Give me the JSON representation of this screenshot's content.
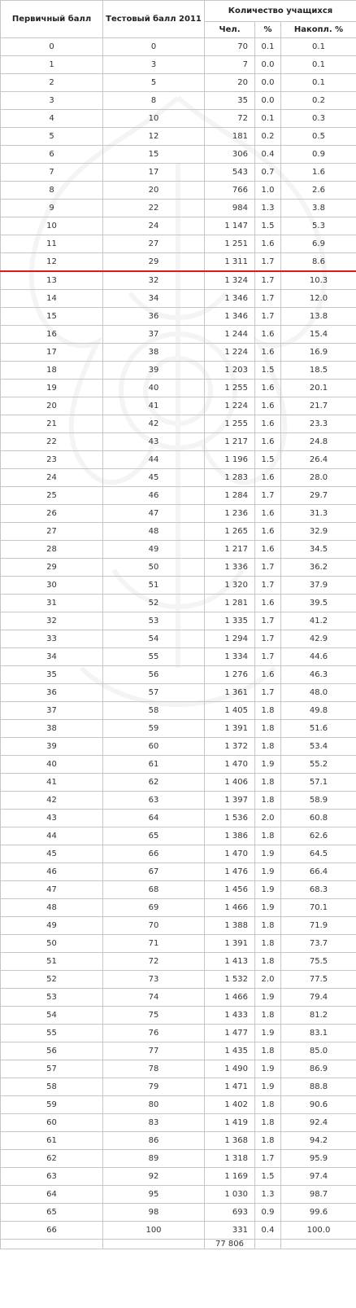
{
  "table": {
    "headers": {
      "primary": "Первичный балл",
      "test": "Тестовый балл 2011",
      "count_group": "Количество учащихся",
      "people": "Чел.",
      "percent": "%",
      "cumulative": "Накопл. %"
    },
    "threshold_after_primary": 12,
    "threshold_color": "#e0191b",
    "rows": [
      [
        "0",
        "0",
        "70",
        "0.1",
        "0.1"
      ],
      [
        "1",
        "3",
        "7",
        "0.0",
        "0.1"
      ],
      [
        "2",
        "5",
        "20",
        "0.0",
        "0.1"
      ],
      [
        "3",
        "8",
        "35",
        "0.0",
        "0.2"
      ],
      [
        "4",
        "10",
        "72",
        "0.1",
        "0.3"
      ],
      [
        "5",
        "12",
        "181",
        "0.2",
        "0.5"
      ],
      [
        "6",
        "15",
        "306",
        "0.4",
        "0.9"
      ],
      [
        "7",
        "17",
        "543",
        "0.7",
        "1.6"
      ],
      [
        "8",
        "20",
        "766",
        "1.0",
        "2.6"
      ],
      [
        "9",
        "22",
        "984",
        "1.3",
        "3.8"
      ],
      [
        "10",
        "24",
        "1 147",
        "1.5",
        "5.3"
      ],
      [
        "11",
        "27",
        "1 251",
        "1.6",
        "6.9"
      ],
      [
        "12",
        "29",
        "1 311",
        "1.7",
        "8.6"
      ],
      [
        "13",
        "32",
        "1 324",
        "1.7",
        "10.3"
      ],
      [
        "14",
        "34",
        "1 346",
        "1.7",
        "12.0"
      ],
      [
        "15",
        "36",
        "1 346",
        "1.7",
        "13.8"
      ],
      [
        "16",
        "37",
        "1 244",
        "1.6",
        "15.4"
      ],
      [
        "17",
        "38",
        "1 224",
        "1.6",
        "16.9"
      ],
      [
        "18",
        "39",
        "1 203",
        "1.5",
        "18.5"
      ],
      [
        "19",
        "40",
        "1 255",
        "1.6",
        "20.1"
      ],
      [
        "20",
        "41",
        "1 224",
        "1.6",
        "21.7"
      ],
      [
        "21",
        "42",
        "1 255",
        "1.6",
        "23.3"
      ],
      [
        "22",
        "43",
        "1 217",
        "1.6",
        "24.8"
      ],
      [
        "23",
        "44",
        "1 196",
        "1.5",
        "26.4"
      ],
      [
        "24",
        "45",
        "1 283",
        "1.6",
        "28.0"
      ],
      [
        "25",
        "46",
        "1 284",
        "1.7",
        "29.7"
      ],
      [
        "26",
        "47",
        "1 236",
        "1.6",
        "31.3"
      ],
      [
        "27",
        "48",
        "1 265",
        "1.6",
        "32.9"
      ],
      [
        "28",
        "49",
        "1 217",
        "1.6",
        "34.5"
      ],
      [
        "29",
        "50",
        "1 336",
        "1.7",
        "36.2"
      ],
      [
        "30",
        "51",
        "1 320",
        "1.7",
        "37.9"
      ],
      [
        "31",
        "52",
        "1 281",
        "1.6",
        "39.5"
      ],
      [
        "32",
        "53",
        "1 335",
        "1.7",
        "41.2"
      ],
      [
        "33",
        "54",
        "1 294",
        "1.7",
        "42.9"
      ],
      [
        "34",
        "55",
        "1 334",
        "1.7",
        "44.6"
      ],
      [
        "35",
        "56",
        "1 276",
        "1.6",
        "46.3"
      ],
      [
        "36",
        "57",
        "1 361",
        "1.7",
        "48.0"
      ],
      [
        "37",
        "58",
        "1 405",
        "1.8",
        "49.8"
      ],
      [
        "38",
        "59",
        "1 391",
        "1.8",
        "51.6"
      ],
      [
        "39",
        "60",
        "1 372",
        "1.8",
        "53.4"
      ],
      [
        "40",
        "61",
        "1 470",
        "1.9",
        "55.2"
      ],
      [
        "41",
        "62",
        "1 406",
        "1.8",
        "57.1"
      ],
      [
        "42",
        "63",
        "1 397",
        "1.8",
        "58.9"
      ],
      [
        "43",
        "64",
        "1 536",
        "2.0",
        "60.8"
      ],
      [
        "44",
        "65",
        "1 386",
        "1.8",
        "62.6"
      ],
      [
        "45",
        "66",
        "1 470",
        "1.9",
        "64.5"
      ],
      [
        "46",
        "67",
        "1 476",
        "1.9",
        "66.4"
      ],
      [
        "47",
        "68",
        "1 456",
        "1.9",
        "68.3"
      ],
      [
        "48",
        "69",
        "1 466",
        "1.9",
        "70.1"
      ],
      [
        "49",
        "70",
        "1 388",
        "1.8",
        "71.9"
      ],
      [
        "50",
        "71",
        "1 391",
        "1.8",
        "73.7"
      ],
      [
        "51",
        "72",
        "1 413",
        "1.8",
        "75.5"
      ],
      [
        "52",
        "73",
        "1 532",
        "2.0",
        "77.5"
      ],
      [
        "53",
        "74",
        "1 466",
        "1.9",
        "79.4"
      ],
      [
        "54",
        "75",
        "1 433",
        "1.8",
        "81.2"
      ],
      [
        "55",
        "76",
        "1 477",
        "1.9",
        "83.1"
      ],
      [
        "56",
        "77",
        "1 435",
        "1.8",
        "85.0"
      ],
      [
        "57",
        "78",
        "1 490",
        "1.9",
        "86.9"
      ],
      [
        "58",
        "79",
        "1 471",
        "1.9",
        "88.8"
      ],
      [
        "59",
        "80",
        "1 402",
        "1.8",
        "90.6"
      ],
      [
        "60",
        "83",
        "1 419",
        "1.8",
        "92.4"
      ],
      [
        "61",
        "86",
        "1 368",
        "1.8",
        "94.2"
      ],
      [
        "62",
        "89",
        "1 318",
        "1.7",
        "95.9"
      ],
      [
        "63",
        "92",
        "1 169",
        "1.5",
        "97.4"
      ],
      [
        "64",
        "95",
        "1 030",
        "1.3",
        "98.7"
      ],
      [
        "65",
        "98",
        "693",
        "0.9",
        "99.6"
      ],
      [
        "66",
        "100",
        "331",
        "0.4",
        "100.0"
      ]
    ],
    "total_people": "77 806"
  }
}
